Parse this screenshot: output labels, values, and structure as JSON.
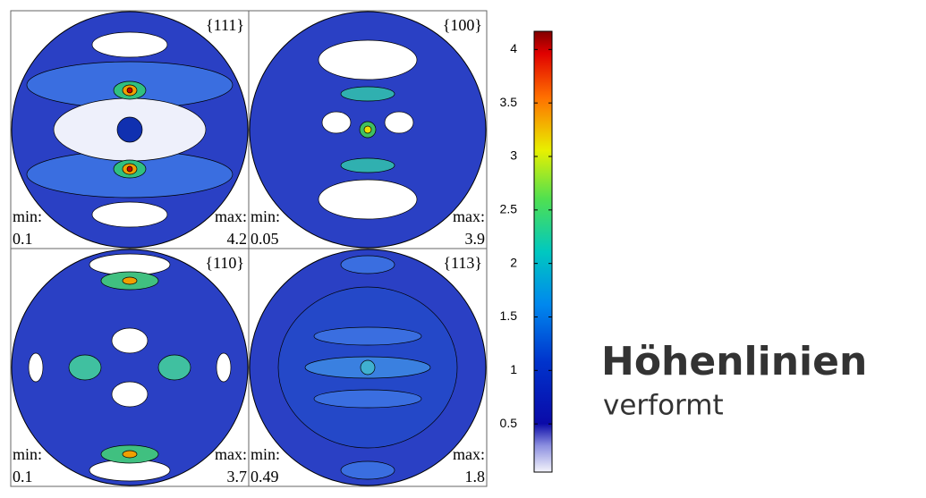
{
  "figure": {
    "panels": [
      {
        "label": "{111}",
        "min_label": "min:",
        "min": 0.1,
        "max_label": "max:",
        "max": 4.2
      },
      {
        "label": "{100}",
        "min_label": "min:",
        "min": 0.05,
        "max_label": "max:",
        "max": 3.9
      },
      {
        "label": "{110}",
        "min_label": "min:",
        "min": 0.1,
        "max_label": "max:",
        "max": 3.7
      },
      {
        "label": "{113}",
        "min_label": "min:",
        "min": 0.49,
        "max_label": "max:",
        "max": 1.8
      }
    ],
    "colorbar": {
      "range": [
        0.05,
        4.17
      ],
      "ticks": [
        0.5,
        1,
        1.5,
        2,
        2.5,
        3,
        3.5,
        4
      ]
    }
  },
  "caption": {
    "title": "Höhenlinien",
    "subtitle": "verformt"
  }
}
